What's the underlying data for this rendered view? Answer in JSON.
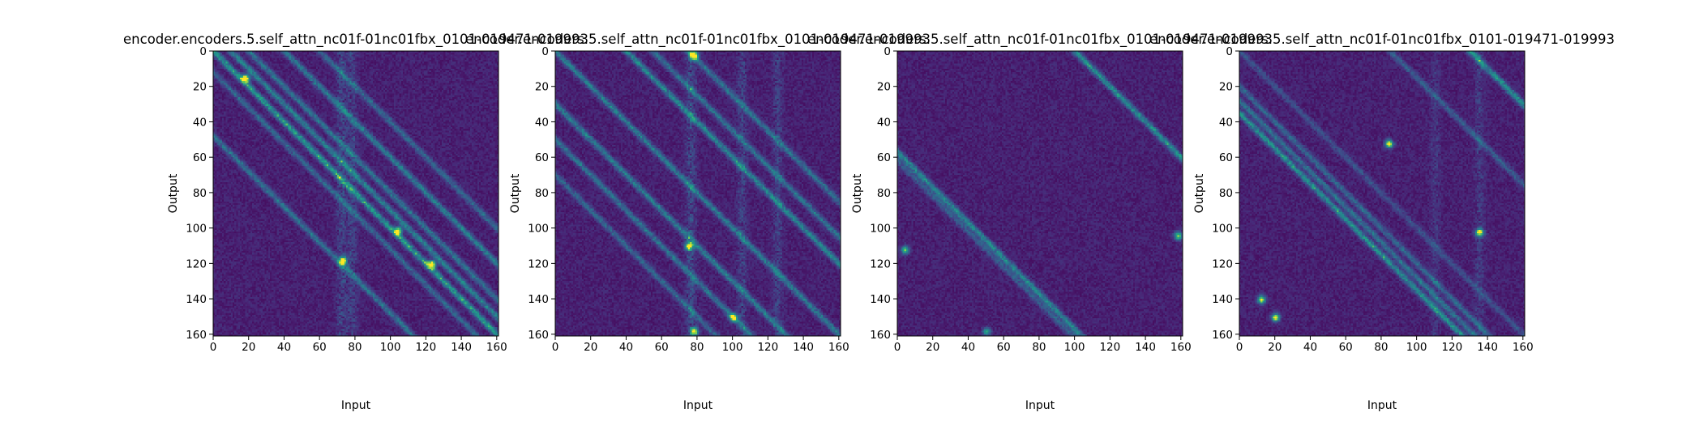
{
  "chart_data": [
    {
      "type": "heatmap",
      "title": "encoder.encoders.5.self_attn_nc01f-01nc01fbx_0101-019471-019993",
      "xlabel": "Input",
      "ylabel": "Output",
      "xlim": [
        0,
        161
      ],
      "ylim": [
        161,
        0
      ],
      "xticks": [
        0,
        20,
        40,
        60,
        80,
        100,
        120,
        140,
        160
      ],
      "yticks": [
        0,
        20,
        40,
        60,
        80,
        100,
        120,
        140,
        160
      ],
      "colormap": "viridis",
      "bands": [
        {
          "offset": 0,
          "intensity": 0.55
        },
        {
          "offset": -10,
          "intensity": 0.42
        },
        {
          "offset": -20,
          "intensity": 0.35
        },
        {
          "offset": -40,
          "intensity": 0.4
        },
        {
          "offset": -60,
          "intensity": 0.3
        },
        {
          "offset": 12,
          "intensity": 0.3
        },
        {
          "offset": 48,
          "intensity": 0.35
        }
      ],
      "vertical_columns": [
        {
          "x": 72,
          "intensity": 0.35
        },
        {
          "x": 78,
          "intensity": 0.3
        }
      ],
      "hotspots": [
        {
          "x": 18,
          "y": 15,
          "value": 1.0
        },
        {
          "x": 73,
          "y": 118,
          "value": 0.9
        },
        {
          "x": 104,
          "y": 101,
          "value": 0.85
        },
        {
          "x": 123,
          "y": 120,
          "value": 0.95
        }
      ]
    },
    {
      "type": "heatmap",
      "title": "encoder.encoders.5.self_attn_nc01f-01nc01fbx_0101-019471-019993",
      "xlabel": "Input",
      "ylabel": "Output",
      "xlim": [
        0,
        161
      ],
      "ylim": [
        161,
        0
      ],
      "xticks": [
        0,
        20,
        40,
        60,
        80,
        100,
        120,
        140,
        160
      ],
      "yticks": [
        0,
        20,
        40,
        60,
        80,
        100,
        120,
        140,
        160
      ],
      "colormap": "viridis",
      "bands": [
        {
          "offset": 0,
          "intensity": 0.4
        },
        {
          "offset": -40,
          "intensity": 0.45
        },
        {
          "offset": -55,
          "intensity": 0.35
        },
        {
          "offset": -75,
          "intensity": 0.35
        },
        {
          "offset": 30,
          "intensity": 0.4
        },
        {
          "offset": 50,
          "intensity": 0.35
        },
        {
          "offset": 70,
          "intensity": 0.3
        }
      ],
      "vertical_columns": [
        {
          "x": 76,
          "intensity": 0.4
        },
        {
          "x": 105,
          "intensity": 0.3
        },
        {
          "x": 125,
          "intensity": 0.3
        }
      ],
      "hotspots": [
        {
          "x": 78,
          "y": 2,
          "value": 1.0
        },
        {
          "x": 75,
          "y": 110,
          "value": 0.95
        },
        {
          "x": 78,
          "y": 158,
          "value": 0.95
        },
        {
          "x": 100,
          "y": 150,
          "value": 0.8
        }
      ]
    },
    {
      "type": "heatmap",
      "title": "encoder.encoders.5.self_attn_nc01f-01nc01fbx_0101-019471-019993",
      "xlabel": "Input",
      "ylabel": "Output",
      "xlim": [
        0,
        161
      ],
      "ylim": [
        161,
        0
      ],
      "xticks": [
        0,
        20,
        40,
        60,
        80,
        100,
        120,
        140,
        160
      ],
      "yticks": [
        0,
        20,
        40,
        60,
        80,
        100,
        120,
        140,
        160
      ],
      "colormap": "viridis",
      "bands": [
        {
          "offset": 57,
          "intensity": 0.45
        },
        {
          "offset": -100,
          "intensity": 0.5
        },
        {
          "offset": 62,
          "intensity": 0.25
        }
      ],
      "vertical_columns": [],
      "hotspots": [
        {
          "x": 158,
          "y": 104,
          "value": 0.8
        },
        {
          "x": 4,
          "y": 112,
          "value": 0.75
        },
        {
          "x": 50,
          "y": 158,
          "value": 0.6
        }
      ]
    },
    {
      "type": "heatmap",
      "title": "encoder.encoders.5.self_attn_nc01f-01nc01fbx_0101-019471-019993",
      "xlabel": "Input",
      "ylabel": "Output",
      "xlim": [
        0,
        161
      ],
      "ylim": [
        161,
        0
      ],
      "xticks": [
        0,
        20,
        40,
        60,
        80,
        100,
        120,
        140,
        160
      ],
      "yticks": [
        0,
        20,
        40,
        60,
        80,
        100,
        120,
        140,
        160
      ],
      "colormap": "viridis",
      "bands": [
        {
          "offset": 35,
          "intensity": 0.5
        },
        {
          "offset": 28,
          "intensity": 0.35
        },
        {
          "offset": 20,
          "intensity": 0.3
        },
        {
          "offset": -130,
          "intensity": 0.5
        },
        {
          "offset": -85,
          "intensity": 0.25
        },
        {
          "offset": 0,
          "intensity": 0.2
        }
      ],
      "vertical_columns": [
        {
          "x": 110,
          "intensity": 0.2
        },
        {
          "x": 135,
          "intensity": 0.25
        }
      ],
      "hotspots": [
        {
          "x": 84,
          "y": 52,
          "value": 0.95
        },
        {
          "x": 135,
          "y": 102,
          "value": 0.95
        },
        {
          "x": 12,
          "y": 140,
          "value": 0.9
        },
        {
          "x": 20,
          "y": 150,
          "value": 0.95
        }
      ]
    }
  ]
}
